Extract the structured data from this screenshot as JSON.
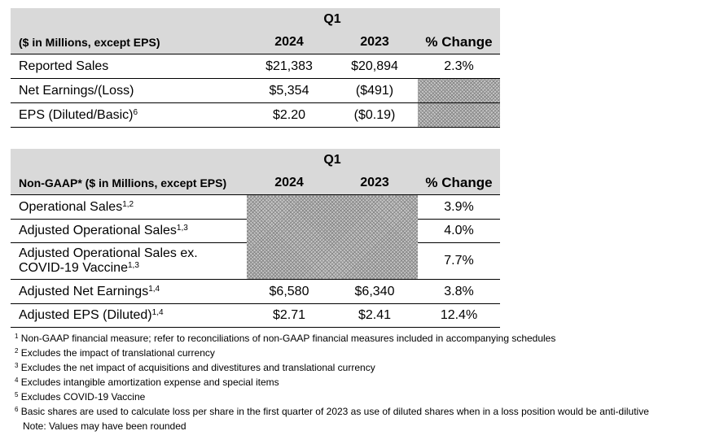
{
  "table1": {
    "period": "Q1",
    "headers": {
      "label": "($ in Millions, except EPS)",
      "y2024": "2024",
      "y2023": "2023",
      "pct": "% Change"
    },
    "rows": [
      {
        "label": "Reported Sales",
        "sup": "",
        "y2024": "$21,383",
        "y2023": "$20,894",
        "pct": "2.3%"
      },
      {
        "label": "Net Earnings/(Loss)",
        "sup": "",
        "y2024": "$5,354",
        "y2023": "($491)",
        "pct": ""
      },
      {
        "label": "EPS (Diluted/Basic)",
        "sup": "6",
        "y2024": "$2.20",
        "y2023": "($0.19)",
        "pct": ""
      }
    ]
  },
  "table2": {
    "period": "Q1",
    "headers": {
      "label": "Non-GAAP* ($ in Millions, except EPS)",
      "y2024": "2024",
      "y2023": "2023",
      "pct": "% Change"
    },
    "rows": [
      {
        "label": "Operational Sales",
        "sup": "1,2",
        "y2024": "",
        "y2023": "",
        "pct": "3.9%"
      },
      {
        "label": "Adjusted Operational Sales",
        "sup": "1,3",
        "y2024": "",
        "y2023": "",
        "pct": "4.0%"
      },
      {
        "label_line1": "Adjusted Operational Sales ex.",
        "label_line2": "COVID-19 Vaccine",
        "sup": "1,3",
        "y2024": "",
        "y2023": "",
        "pct": "7.7%"
      },
      {
        "label": "Adjusted Net Earnings",
        "sup": "1,4",
        "y2024": "$6,580",
        "y2023": "$6,340",
        "pct": "3.8%"
      },
      {
        "label": "Adjusted EPS (Diluted)",
        "sup": "1,4",
        "y2024": "$2.71",
        "y2023": "$2.41",
        "pct": "12.4%"
      }
    ]
  },
  "footnotes": [
    {
      "mark": "1",
      "text": " Non-GAAP financial measure; refer to reconciliations of non-GAAP financial measures included in accompanying schedules"
    },
    {
      "mark": "2",
      "text": " Excludes the impact of translational currency"
    },
    {
      "mark": "3",
      "text": " Excludes the net impact of acquisitions and divestitures and translational currency"
    },
    {
      "mark": "4",
      "text": " Excludes intangible amortization expense and special items"
    },
    {
      "mark": "5",
      "text": " Excludes COVID-19 Vaccine"
    },
    {
      "mark": "6",
      "text": " Basic shares are used to calculate loss per share in the first quarter of 2023 as use of diluted shares when in a loss position would be anti-dilutive"
    }
  ],
  "note": "Note: Values may have been rounded"
}
